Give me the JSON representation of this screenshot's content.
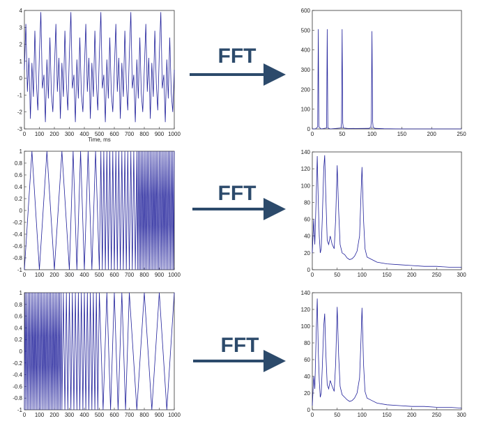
{
  "chart_data": [
    {
      "type": "line",
      "xlabel": "Time, ms",
      "color": "#1f1f9a",
      "xlim": [
        0,
        1000
      ],
      "ylim": [
        -3,
        4
      ],
      "xticks": [
        0,
        100,
        200,
        300,
        400,
        500,
        600,
        700,
        800,
        900,
        1000
      ],
      "yticks": [
        -3,
        -2,
        -1,
        0,
        1,
        2,
        3,
        4
      ],
      "x": [
        0,
        10,
        20,
        30,
        40,
        50,
        60,
        70,
        80,
        90,
        100,
        110,
        120,
        130,
        140,
        150,
        160,
        170,
        180,
        190,
        200,
        210,
        220,
        230,
        240,
        250,
        260,
        270,
        280,
        290,
        300,
        310,
        320,
        330,
        340,
        350,
        360,
        370,
        380,
        390,
        400,
        410,
        420,
        430,
        440,
        450,
        460,
        470,
        480,
        490,
        500,
        510,
        520,
        530,
        540,
        550,
        560,
        570,
        580,
        590,
        600,
        610,
        620,
        630,
        640,
        650,
        660,
        670,
        680,
        690,
        700,
        710,
        720,
        730,
        740,
        750,
        760,
        770,
        780,
        790,
        800,
        810,
        820,
        830,
        840,
        850,
        860,
        870,
        880,
        890,
        900,
        910,
        920,
        930,
        940,
        950,
        960,
        970,
        980,
        990,
        1000
      ],
      "values": [
        0.5,
        3.2,
        -0.8,
        1.2,
        -2.4,
        0.9,
        -1.1,
        2.8,
        -0.3,
        -1.9,
        1.4,
        3.9,
        -0.6,
        0.2,
        -2.6,
        1.1,
        -1.2,
        2.4,
        -0.9,
        -2.0,
        0.5,
        3.2,
        -0.8,
        1.2,
        -2.4,
        0.9,
        -1.1,
        2.8,
        -0.3,
        -1.9,
        1.4,
        3.9,
        -0.6,
        0.2,
        -2.6,
        1.1,
        -1.2,
        2.4,
        -0.9,
        -2.0,
        0.5,
        3.2,
        -0.8,
        1.2,
        -2.4,
        0.9,
        -1.1,
        2.8,
        -0.3,
        -1.9,
        1.4,
        3.9,
        -0.6,
        0.2,
        -2.6,
        1.1,
        -1.2,
        2.4,
        -0.9,
        -2.0,
        0.5,
        3.2,
        -0.8,
        1.2,
        -2.4,
        0.9,
        -1.1,
        2.8,
        -0.3,
        -1.9,
        1.4,
        3.9,
        -0.6,
        0.2,
        -2.6,
        1.1,
        -1.2,
        2.4,
        -0.9,
        -2.0,
        0.5,
        3.2,
        -0.8,
        1.2,
        -2.4,
        0.9,
        -1.1,
        2.8,
        -0.3,
        -1.9,
        1.4,
        3.9,
        -0.6,
        0.2,
        -2.6,
        1.1,
        -1.2,
        2.4,
        -0.9,
        -2.0,
        0.5
      ]
    },
    {
      "type": "line",
      "color": "#1f1f9a",
      "xlim": [
        0,
        250
      ],
      "ylim": [
        0,
        600
      ],
      "xticks": [
        0,
        50,
        100,
        150,
        200,
        250
      ],
      "yticks": [
        0,
        100,
        200,
        300,
        400,
        500,
        600
      ],
      "x": [
        0,
        5,
        9,
        10,
        11,
        15,
        24,
        25,
        26,
        30,
        48,
        49,
        50,
        51,
        52,
        60,
        95,
        98,
        99,
        100,
        101,
        102,
        105,
        120,
        150,
        200,
        250
      ],
      "values": [
        0,
        0,
        10,
        505,
        10,
        0,
        5,
        505,
        5,
        0,
        5,
        30,
        505,
        30,
        5,
        2,
        3,
        8,
        40,
        495,
        40,
        8,
        3,
        1,
        0,
        0,
        0
      ]
    },
    {
      "type": "line",
      "color": "#1f1f9a",
      "xlim": [
        0,
        1000
      ],
      "ylim": [
        -1,
        1
      ],
      "xticks": [
        0,
        100,
        200,
        300,
        400,
        500,
        600,
        700,
        800,
        900,
        1000
      ],
      "yticks": [
        -1,
        -0.8,
        -0.6,
        -0.4,
        -0.2,
        0,
        0.2,
        0.4,
        0.6,
        0.8,
        1
      ],
      "x": [
        0,
        50,
        100,
        150,
        200,
        250,
        300,
        325,
        350,
        375,
        400,
        425,
        450,
        475,
        500,
        510,
        520,
        530,
        540,
        550,
        560,
        570,
        580,
        590,
        600,
        610,
        620,
        630,
        640,
        650,
        660,
        670,
        680,
        690,
        700,
        710,
        720,
        730,
        740,
        750,
        755,
        760,
        765,
        770,
        775,
        780,
        785,
        790,
        795,
        800,
        805,
        810,
        815,
        820,
        825,
        830,
        835,
        840,
        845,
        850,
        855,
        860,
        865,
        870,
        875,
        880,
        885,
        890,
        895,
        900,
        905,
        910,
        915,
        920,
        925,
        930,
        935,
        940,
        945,
        950,
        955,
        960,
        965,
        970,
        975,
        980,
        985,
        990,
        995,
        1000
      ],
      "values": [
        -1,
        1,
        -1,
        1,
        -1,
        1,
        -1,
        1,
        -1,
        1,
        -1,
        1,
        -1,
        1,
        -1,
        1,
        -1,
        1,
        -1,
        1,
        -1,
        1,
        -1,
        1,
        -1,
        1,
        -1,
        1,
        -1,
        1,
        -1,
        1,
        -1,
        1,
        -1,
        1,
        -1,
        1,
        -1,
        1,
        -1,
        1,
        -1,
        1,
        -1,
        1,
        -1,
        1,
        -1,
        1,
        -1,
        1,
        -1,
        1,
        -1,
        1,
        -1,
        1,
        -1,
        1,
        -1,
        1,
        -1,
        1,
        -1,
        1,
        -1,
        1,
        -1,
        1,
        -1,
        1,
        -1,
        1,
        -1,
        1,
        -1,
        1,
        -1,
        1,
        -1,
        1,
        -1,
        1,
        -1,
        1,
        -1,
        1,
        -1,
        1
      ]
    },
    {
      "type": "line",
      "color": "#1f1f9a",
      "xlim": [
        0,
        300
      ],
      "ylim": [
        0,
        140
      ],
      "xticks": [
        0,
        50,
        100,
        150,
        200,
        250,
        300
      ],
      "yticks": [
        0,
        20,
        40,
        60,
        80,
        100,
        120,
        140
      ],
      "x": [
        0,
        3,
        5,
        8,
        10,
        12,
        14,
        16,
        18,
        20,
        23,
        25,
        27,
        30,
        33,
        36,
        40,
        44,
        47,
        50,
        53,
        56,
        60,
        65,
        70,
        75,
        80,
        85,
        90,
        95,
        98,
        100,
        103,
        106,
        110,
        120,
        130,
        150,
        175,
        200,
        225,
        250,
        275,
        300
      ],
      "values": [
        20,
        60,
        30,
        90,
        135,
        80,
        40,
        20,
        25,
        60,
        120,
        136,
        90,
        35,
        30,
        40,
        30,
        25,
        60,
        124,
        70,
        30,
        20,
        18,
        14,
        12,
        13,
        16,
        22,
        40,
        90,
        122,
        60,
        25,
        15,
        12,
        9,
        7,
        6,
        5,
        4,
        4,
        3,
        3
      ]
    },
    {
      "type": "line",
      "color": "#1f1f9a",
      "xlim": [
        0,
        1000
      ],
      "ylim": [
        -1,
        1
      ],
      "xticks": [
        0,
        100,
        200,
        300,
        400,
        500,
        600,
        700,
        800,
        900,
        1000
      ],
      "yticks": [
        -1,
        -0.8,
        -0.6,
        -0.4,
        -0.2,
        0,
        0.2,
        0.4,
        0.6,
        0.8,
        1
      ],
      "x": [
        0,
        5,
        10,
        15,
        20,
        25,
        30,
        35,
        40,
        45,
        50,
        55,
        60,
        65,
        70,
        75,
        80,
        85,
        90,
        95,
        100,
        105,
        110,
        115,
        120,
        125,
        130,
        135,
        140,
        145,
        150,
        155,
        160,
        165,
        170,
        175,
        180,
        185,
        190,
        195,
        200,
        205,
        210,
        215,
        220,
        225,
        230,
        235,
        240,
        245,
        250,
        260,
        270,
        280,
        290,
        300,
        310,
        320,
        330,
        340,
        350,
        360,
        370,
        380,
        390,
        400,
        410,
        420,
        430,
        440,
        450,
        460,
        470,
        480,
        490,
        500,
        525,
        550,
        575,
        600,
        625,
        650,
        675,
        700,
        750,
        800,
        850,
        900,
        950,
        1000
      ],
      "values": [
        -1,
        1,
        -1,
        1,
        -1,
        1,
        -1,
        1,
        -1,
        1,
        -1,
        1,
        -1,
        1,
        -1,
        1,
        -1,
        1,
        -1,
        1,
        -1,
        1,
        -1,
        1,
        -1,
        1,
        -1,
        1,
        -1,
        1,
        -1,
        1,
        -1,
        1,
        -1,
        1,
        -1,
        1,
        -1,
        1,
        -1,
        1,
        -1,
        1,
        -1,
        1,
        -1,
        1,
        -1,
        1,
        -1,
        1,
        -1,
        1,
        -1,
        1,
        -1,
        1,
        -1,
        1,
        -1,
        1,
        -1,
        1,
        -1,
        1,
        -1,
        1,
        -1,
        1,
        -1,
        1,
        -1,
        1,
        -1,
        1,
        -1,
        1,
        -1,
        1,
        -1,
        1,
        -1,
        1,
        -1,
        1,
        -1,
        1,
        -1,
        1
      ]
    },
    {
      "type": "line",
      "color": "#1f1f9a",
      "xlim": [
        0,
        300
      ],
      "ylim": [
        0,
        140
      ],
      "xticks": [
        0,
        50,
        100,
        150,
        200,
        250,
        300
      ],
      "yticks": [
        0,
        20,
        40,
        60,
        80,
        100,
        120,
        140
      ],
      "x": [
        0,
        3,
        5,
        8,
        10,
        12,
        14,
        16,
        18,
        20,
        23,
        25,
        27,
        30,
        33,
        36,
        40,
        44,
        47,
        50,
        53,
        56,
        60,
        65,
        70,
        75,
        80,
        85,
        90,
        95,
        98,
        100,
        103,
        106,
        110,
        120,
        130,
        150,
        175,
        200,
        225,
        250,
        275,
        300
      ],
      "values": [
        5,
        40,
        25,
        95,
        133,
        70,
        35,
        15,
        20,
        50,
        100,
        115,
        70,
        30,
        25,
        35,
        28,
        22,
        55,
        123,
        65,
        28,
        18,
        15,
        12,
        10,
        11,
        14,
        20,
        38,
        85,
        122,
        55,
        22,
        14,
        11,
        8,
        6,
        5,
        4,
        4,
        3,
        3,
        2
      ]
    }
  ],
  "labels": [
    "FFT",
    "FFT",
    "FFT"
  ]
}
